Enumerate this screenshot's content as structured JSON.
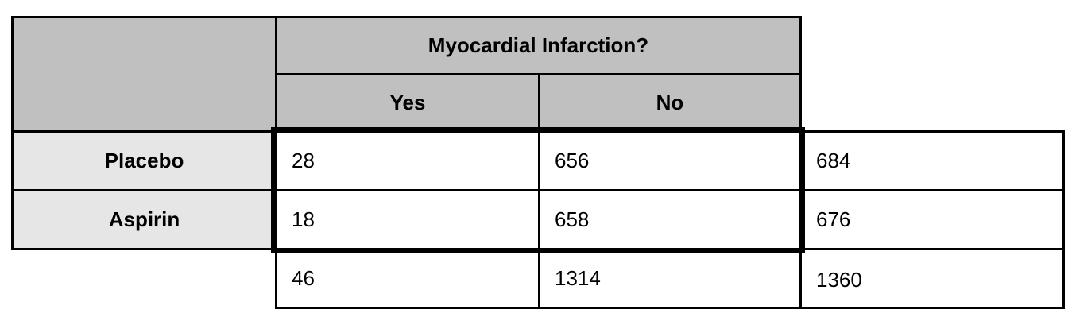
{
  "table": {
    "group_header": "Myocardial Infarction?",
    "columns": [
      "Yes",
      "No"
    ],
    "rows": [
      {
        "label": "Placebo",
        "values": [
          "28",
          "656"
        ],
        "total": "684"
      },
      {
        "label": "Aspirin",
        "values": [
          "18",
          "658"
        ],
        "total": "676"
      }
    ],
    "column_totals": [
      "46",
      "1314"
    ],
    "grand_total": "1360"
  },
  "colors": {
    "header_fill": "#c0c0c0",
    "row_header_fill": "#e6e6e6",
    "border": "#000000"
  }
}
